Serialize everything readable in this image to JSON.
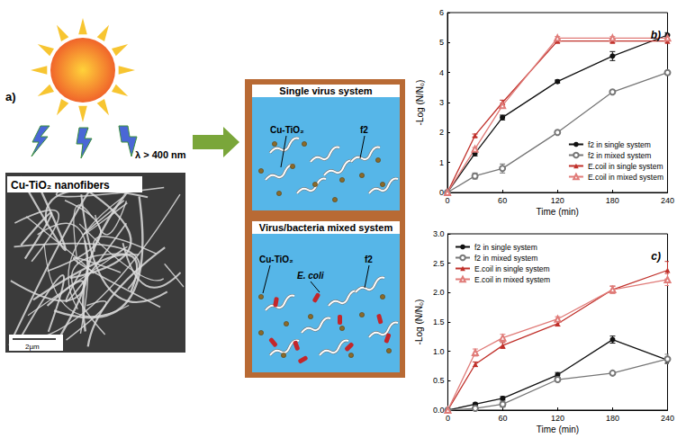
{
  "schematic": {
    "panel_label": "a)",
    "wavelength": "λ > 400 nm",
    "image_caption": "Cu-TiO₂ nanofibers",
    "scale_bar": "2µm",
    "systems": [
      {
        "title": "Single virus system",
        "catalyst_label": "Cu-TiO₂",
        "virus_label": "f2"
      },
      {
        "title": "Virus/bacteria mixed system",
        "catalyst_label": "Cu-TiO₂",
        "virus_label": "f2",
        "bacteria_label": "E. coli"
      }
    ]
  },
  "chart_data": [
    {
      "type": "line",
      "title": "b)",
      "x_label": "Time (min)",
      "y_label": "-Log (N/N₀)",
      "x": [
        0,
        30,
        60,
        120,
        180,
        240
      ],
      "xlim": [
        0,
        240
      ],
      "xticks": [
        0,
        60,
        120,
        180,
        240
      ],
      "ylim": [
        0,
        6
      ],
      "yticks": [
        0,
        1,
        2,
        3,
        4,
        5,
        6
      ],
      "grid": false,
      "legend": "lower right",
      "series": [
        {
          "name": "f2 in single system",
          "color": "#111111",
          "marker": "circle",
          "values": [
            0,
            1.3,
            2.5,
            3.7,
            4.55,
            5.25
          ],
          "errors": [
            null,
            0.08,
            0.08,
            0.05,
            0.15,
            0.08
          ]
        },
        {
          "name": "f2 in mixed system",
          "color": "#777777",
          "marker": "open-circle",
          "values": [
            0,
            0.55,
            0.8,
            2.0,
            3.35,
            4.0
          ],
          "errors": [
            null,
            0.1,
            0.15,
            0.05,
            0.05,
            0.05
          ]
        },
        {
          "name": "E.coil in single system",
          "color": "#c0302a",
          "marker": "triangle",
          "values": [
            0,
            1.9,
            3.0,
            5.05,
            5.05,
            5.05
          ],
          "errors": [
            null,
            0.05,
            0.08,
            0.05,
            0.05,
            0.05
          ]
        },
        {
          "name": "E.coil in mixed system",
          "color": "#e07b78",
          "marker": "open-triangle",
          "values": [
            0,
            1.45,
            2.9,
            5.15,
            5.15,
            5.15
          ],
          "errors": [
            null,
            0.05,
            0.08,
            0.05,
            0.05,
            0.05
          ]
        }
      ]
    },
    {
      "type": "line",
      "title": "c)",
      "x_label": "Time (min)",
      "y_label": "-Log (N/N₀)",
      "x": [
        0,
        30,
        60,
        120,
        180,
        240
      ],
      "xlim": [
        0,
        240
      ],
      "xticks": [
        0,
        60,
        120,
        180,
        240
      ],
      "ylim": [
        0,
        3
      ],
      "yticks": [
        {
          "value": 0,
          "label": "0.0"
        },
        {
          "value": 0.5,
          "label": "0.5"
        },
        {
          "value": 1,
          "label": "1.0"
        },
        {
          "value": 1.5,
          "label": "1.5"
        },
        {
          "value": 2,
          "label": "2.0"
        },
        {
          "value": 2.5,
          "label": "2.5"
        },
        {
          "value": 3,
          "label": "3.0"
        }
      ],
      "grid": false,
      "legend": "upper left",
      "series": [
        {
          "name": "f2 in single system",
          "color": "#111111",
          "marker": "circle",
          "values": [
            0,
            0.1,
            0.2,
            0.6,
            1.2,
            0.85
          ],
          "errors": [
            null,
            0.02,
            0.03,
            0.04,
            0.06,
            0.05
          ]
        },
        {
          "name": "f2 in mixed system",
          "color": "#777777",
          "marker": "open-circle",
          "values": [
            0,
            0.03,
            0.1,
            0.52,
            0.63,
            0.87
          ],
          "errors": [
            null,
            0.02,
            0.05,
            0.03,
            0.02,
            0.08
          ]
        },
        {
          "name": "E.coil in single system",
          "color": "#c0302a",
          "marker": "triangle",
          "values": [
            0,
            0.78,
            1.1,
            1.47,
            2.05,
            2.38
          ],
          "errors": [
            null,
            0.04,
            0.05,
            0.04,
            0.06,
            0.15
          ]
        },
        {
          "name": "E.coil in mixed system",
          "color": "#e07b78",
          "marker": "open-triangle",
          "values": [
            0,
            0.98,
            1.23,
            1.55,
            2.05,
            2.22
          ],
          "errors": [
            null,
            0.06,
            0.06,
            0.04,
            0.06,
            0.1
          ]
        }
      ]
    }
  ]
}
